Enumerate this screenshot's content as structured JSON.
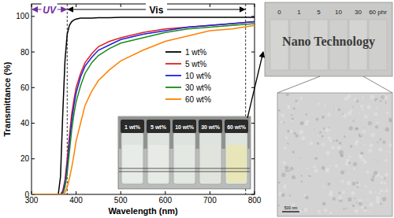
{
  "chart_data": {
    "type": "line",
    "x_label": "Wavelength (nm)",
    "y_label": "Transmittance (%)",
    "xlim": [
      300,
      800
    ],
    "ylim": [
      0,
      107
    ],
    "xticks": [
      300,
      400,
      500,
      600,
      700,
      800
    ],
    "yticks": [
      0,
      20,
      40,
      60,
      80,
      100
    ],
    "x": [
      300,
      350,
      360,
      365,
      370,
      375,
      380,
      385,
      390,
      395,
      400,
      410,
      420,
      435,
      450,
      475,
      500,
      550,
      600,
      650,
      700,
      750,
      800
    ],
    "series": [
      {
        "name": "1 wt%",
        "color": "#000000",
        "values": [
          0,
          0,
          0,
          10,
          45,
          75,
          90,
          95,
          97,
          98,
          98.5,
          99,
          99,
          99,
          99.3,
          99.3,
          99.5,
          99.5,
          99.5,
          99.5,
          99.5,
          99.5,
          99.5
        ]
      },
      {
        "name": "5 wt%",
        "color": "#e02020",
        "values": [
          0,
          0,
          0,
          0,
          2,
          8,
          20,
          33,
          45,
          53,
          60,
          68,
          74,
          79,
          83,
          86,
          88,
          91,
          93,
          94,
          95,
          96,
          97
        ]
      },
      {
        "name": "10 wt%",
        "color": "#1f1fdf",
        "values": [
          0,
          0,
          0,
          0,
          1,
          6,
          16,
          29,
          41,
          50,
          57,
          66,
          72,
          77,
          81,
          84,
          87,
          90,
          92,
          94,
          95,
          96,
          97
        ]
      },
      {
        "name": "30 wt%",
        "color": "#1a8a1a",
        "values": [
          0,
          0,
          0,
          0,
          0,
          4,
          12,
          24,
          36,
          45,
          52,
          61,
          68,
          74,
          78,
          82,
          85,
          88,
          91,
          93,
          94,
          95,
          96
        ]
      },
      {
        "name": "60 wt%",
        "color": "#ff8000",
        "values": [
          0,
          0,
          0,
          0,
          0,
          1,
          4,
          9,
          15,
          22,
          30,
          40,
          50,
          58,
          64,
          70,
          75,
          81,
          86,
          89,
          92,
          93,
          95
        ]
      }
    ],
    "legend": "right",
    "regions": [
      {
        "label": "UV",
        "start": 300,
        "end": 380,
        "color": "#7030a0"
      },
      {
        "label": "Vis",
        "start": 380,
        "end": 780,
        "color": "#000000"
      }
    ]
  },
  "inset_photo": {
    "labels": [
      "1 wt%",
      "5 wt%",
      "10 wt%",
      "30 wt%",
      "60 wt%"
    ]
  },
  "film_photo": {
    "labels": [
      "0",
      "1",
      "5",
      "10",
      "30",
      "60 phr"
    ],
    "text": "Nano Technology"
  },
  "tem_image": {
    "scale_bar": "500 nm"
  }
}
